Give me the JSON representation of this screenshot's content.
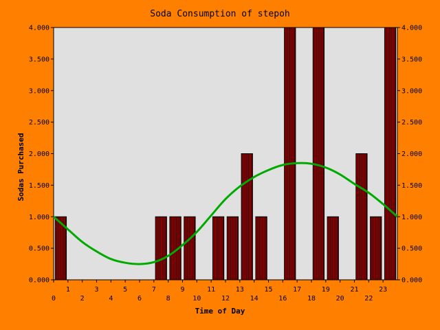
{
  "chart_data": {
    "type": "bar",
    "title": "Soda Consumption of stepoh",
    "xlabel": "Time of Day",
    "ylabel": "Sodas Purchased",
    "ylim": [
      0,
      4
    ],
    "y_ticks": [
      "0.000",
      "0.500",
      "1.000",
      "1.500",
      "2.000",
      "2.500",
      "3.000",
      "3.500",
      "4.000"
    ],
    "x_ticks": [
      "0",
      "1",
      "2",
      "3",
      "4",
      "5",
      "6",
      "7",
      "8",
      "9",
      "10",
      "11",
      "12",
      "13",
      "14",
      "15",
      "16",
      "17",
      "18",
      "19",
      "20",
      "21",
      "22",
      "23"
    ],
    "categories": [
      "0",
      "1",
      "2",
      "3",
      "4",
      "5",
      "6",
      "7",
      "8",
      "9",
      "10",
      "11",
      "12",
      "13",
      "14",
      "15",
      "16",
      "17",
      "18",
      "19",
      "20",
      "21",
      "22",
      "23"
    ],
    "values": [
      1,
      0,
      0,
      0,
      0,
      0,
      0,
      1,
      1,
      1,
      0,
      1,
      1,
      2,
      1,
      0,
      4,
      0,
      4,
      1,
      0,
      2,
      1,
      4
    ],
    "trend": {
      "x": [
        0,
        1,
        2,
        3,
        4,
        5,
        6,
        7,
        8,
        9,
        10,
        11,
        12,
        13,
        14,
        15,
        16,
        17,
        18,
        19,
        20,
        21,
        22,
        23,
        24
      ],
      "y": [
        1.0,
        0.8,
        0.6,
        0.45,
        0.33,
        0.27,
        0.25,
        0.28,
        0.38,
        0.55,
        0.76,
        1.02,
        1.28,
        1.48,
        1.63,
        1.74,
        1.82,
        1.85,
        1.84,
        1.78,
        1.67,
        1.52,
        1.38,
        1.2,
        1.0
      ]
    },
    "grid": false,
    "legend": "none",
    "colors": {
      "background": "#ff8000",
      "plot_area": "#e0e0e0",
      "bar_fill": "#8b0000",
      "bar_edge": "#000000",
      "trend_line": "#00aa00"
    }
  }
}
